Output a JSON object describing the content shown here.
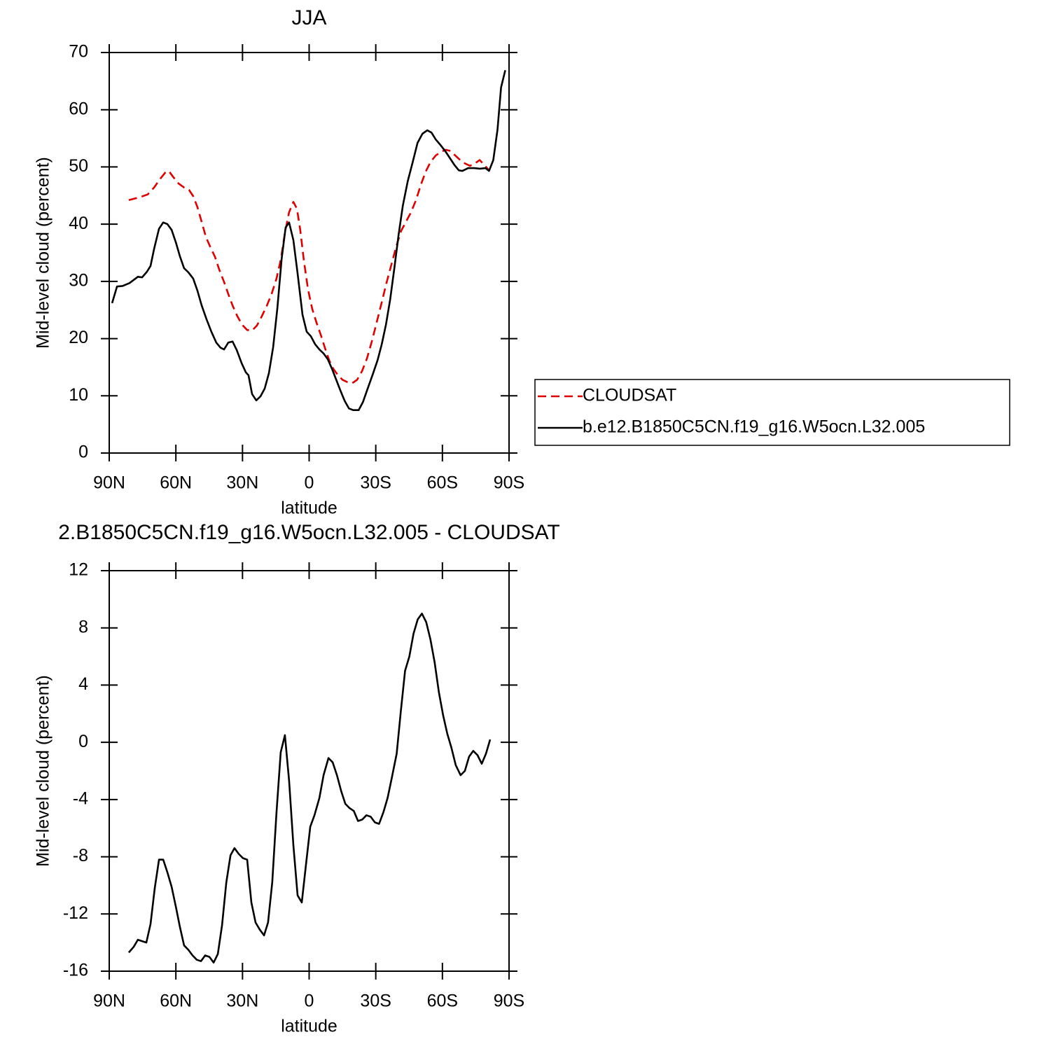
{
  "chart_data": [
    {
      "type": "line",
      "title": "JJA",
      "xlabel": "latitude",
      "ylabel": "Mid-level cloud (percent)",
      "xlim": [
        90,
        -90
      ],
      "xticks": [
        {
          "value": 90,
          "label": "90N"
        },
        {
          "value": 60,
          "label": "60N"
        },
        {
          "value": 30,
          "label": "30N"
        },
        0,
        {
          "value": -30,
          "label": "30S"
        },
        {
          "value": -60,
          "label": "60S"
        },
        {
          "value": -90,
          "label": "90S"
        }
      ],
      "ylim": [
        0,
        70
      ],
      "yticks": [
        0,
        10,
        20,
        30,
        40,
        50,
        60,
        70
      ],
      "legend": "right",
      "series": [
        {
          "name": "CLOUDSAT",
          "color": "#e00000",
          "dash": true,
          "x": [
            81.2,
            78.3,
            75.5,
            72.7,
            69.8,
            67.3,
            64.8,
            63.2,
            61.3,
            58.8,
            56.3,
            54.1,
            52.2,
            50.3,
            48.4,
            46.5,
            44.6,
            42.4,
            40.5,
            38.3,
            36.4,
            34.5,
            32.3,
            30.1,
            27.9,
            25.7,
            23.5,
            21.3,
            19.1,
            16.9,
            14.7,
            12.7,
            10.9,
            9,
            7.1,
            5.5,
            4,
            2.4,
            0.5,
            -1.4,
            -3.3,
            -5.2,
            -7.1,
            -9,
            -10.9,
            -12.8,
            -15,
            -17.2,
            -19.4,
            -21.6,
            -23.8,
            -26,
            -28.2,
            -30.4,
            -32.6,
            -34.8,
            -37,
            -39.2,
            -41.4,
            -43.7,
            -45.9,
            -48.1,
            -50.3,
            -52.5,
            -54.7,
            -57,
            -59.2,
            -61.4,
            -63.6,
            -65.8,
            -68,
            -70.2,
            -72.4,
            -74.6,
            -76.8,
            -79,
            -81.2
          ],
          "values": [
            44.2,
            44.5,
            44.8,
            45.2,
            46.4,
            47.8,
            49.0,
            49.3,
            48.3,
            47.1,
            46.4,
            46.0,
            44.9,
            43.0,
            40.4,
            37.8,
            36.1,
            34.3,
            32.1,
            29.9,
            27.8,
            25.8,
            23.9,
            22.4,
            21.5,
            21.4,
            22.3,
            23.9,
            25.7,
            27.8,
            30.5,
            33.9,
            38.5,
            42.1,
            43.9,
            42.7,
            39.0,
            33.7,
            28.6,
            25.2,
            22.8,
            20.7,
            18.4,
            16.2,
            14.7,
            13.7,
            12.8,
            12.4,
            12.2,
            12.8,
            14.3,
            16.5,
            19.5,
            22.8,
            26.2,
            29.7,
            32.9,
            36.1,
            38.8,
            40.5,
            42.1,
            44.2,
            46.9,
            49.2,
            50.9,
            52.0,
            52.6,
            53.0,
            52.8,
            52.0,
            51.2,
            50.6,
            50.2,
            50.6,
            51.2,
            50.3,
            49.3
          ]
        },
        {
          "name": "b.e12.B1850C5CN.f19_g16.W5ocn.L32.005",
          "color": "#000000",
          "dash": false,
          "x": [
            88.7,
            86.5,
            84,
            80.9,
            77.1,
            75.2,
            73,
            71.4,
            69.8,
            67.6,
            65.7,
            63.8,
            61.9,
            60,
            58.2,
            56.3,
            54.4,
            52.2,
            50.3,
            48.4,
            46.2,
            44,
            41.8,
            39.9,
            38.3,
            36.4,
            34.5,
            32.6,
            30.4,
            28.5,
            27.3,
            25.7,
            23.8,
            21.9,
            20,
            18.1,
            16.2,
            14.3,
            12.4,
            10.6,
            9,
            7.1,
            5.2,
            3,
            1.1,
            -0.8,
            -2.7,
            -4.6,
            -6.5,
            -8.4,
            -10.3,
            -12.2,
            -14.1,
            -16,
            -17.9,
            -19.8,
            -22.3,
            -24.2,
            -26.4,
            -28.6,
            -30.8,
            -32.7,
            -34.6,
            -36.5,
            -38.4,
            -40.3,
            -42.2,
            -44.4,
            -46.6,
            -48.8,
            -51,
            -53.2,
            -55.1,
            -57,
            -59.2,
            -61.4,
            -63.6,
            -65.5,
            -67.4,
            -69,
            -71.6,
            -74.3,
            -76.9,
            -79.4,
            -81,
            -82.9,
            -84.8,
            -86.4,
            -88.3
          ],
          "values": [
            26.2,
            29.1,
            29.2,
            29.7,
            30.8,
            30.7,
            31.7,
            32.7,
            35.7,
            39.2,
            40.3,
            40.0,
            39.0,
            36.8,
            34.4,
            32.3,
            31.6,
            30.5,
            28.4,
            25.8,
            23.4,
            21.2,
            19.3,
            18.4,
            18.1,
            19.3,
            19.5,
            18.0,
            15.7,
            14.1,
            13.6,
            10.3,
            9.2,
            9.9,
            11.3,
            14.0,
            18.5,
            25.3,
            33.9,
            39.4,
            40.3,
            37.2,
            31.4,
            24.2,
            21.2,
            20.4,
            19.0,
            18.1,
            17.4,
            16.4,
            14.7,
            12.8,
            10.9,
            9.1,
            7.8,
            7.5,
            7.5,
            8.9,
            11.3,
            13.7,
            16.2,
            19.0,
            22.5,
            26.9,
            32.4,
            38.2,
            43.3,
            47.5,
            50.8,
            54.2,
            55.8,
            56.4,
            56.0,
            54.8,
            53.8,
            52.7,
            51.4,
            50.3,
            49.4,
            49.3,
            49.8,
            49.8,
            49.7,
            49.8,
            49.3,
            51.2,
            56.5,
            63.9,
            66.9
          ]
        }
      ]
    },
    {
      "type": "line",
      "title": "2.B1850C5CN.f19_g16.W5ocn.L32.005 - CLOUDSAT",
      "xlabel": "latitude",
      "ylabel": "Mid-level cloud (percent)",
      "xlim": [
        90,
        -90
      ],
      "xticks": [
        {
          "value": 90,
          "label": "90N"
        },
        {
          "value": 60,
          "label": "60N"
        },
        {
          "value": 30,
          "label": "30N"
        },
        0,
        {
          "value": -30,
          "label": "30S"
        },
        {
          "value": -60,
          "label": "60S"
        },
        {
          "value": -90,
          "label": "90S"
        }
      ],
      "ylim": [
        -16,
        12
      ],
      "yticks": [
        -16,
        -12,
        -8,
        -4,
        0,
        4,
        8,
        12
      ],
      "series": [
        {
          "color": "#000000",
          "dash": false,
          "x": [
            81.2,
            79,
            77.1,
            75.2,
            73.3,
            71.4,
            69.5,
            67.6,
            65.7,
            63.8,
            61.9,
            60,
            58.2,
            56.3,
            54.4,
            52.5,
            50.6,
            48.7,
            46.8,
            44.9,
            43,
            41.1,
            39.2,
            37.3,
            35.4,
            33.6,
            31.7,
            29.8,
            27.9,
            26,
            24.1,
            22.2,
            20.3,
            18.5,
            16.6,
            14.7,
            12.8,
            10.9,
            9,
            7.1,
            5.2,
            3.3,
            1.4,
            -0.5,
            -2.4,
            -4.6,
            -6.5,
            -8.7,
            -10.6,
            -12.5,
            -14.4,
            -16.3,
            -18.2,
            -20.1,
            -22,
            -23.9,
            -25.8,
            -27.7,
            -29.6,
            -31.5,
            -33.4,
            -35.3,
            -37.2,
            -39.4,
            -41.3,
            -43.2,
            -45.1,
            -47,
            -48.9,
            -50.8,
            -52.7,
            -54.6,
            -56.5,
            -58.4,
            -60.3,
            -62.2,
            -64.1,
            -66,
            -68.2,
            -70.1,
            -72,
            -73.9,
            -75.8,
            -77.7,
            -79.6,
            -81.5
          ],
          "values": [
            -14.7,
            -14.3,
            -13.8,
            -13.9,
            -14.0,
            -12.7,
            -10.2,
            -8.2,
            -8.2,
            -9.1,
            -10.1,
            -11.5,
            -12.9,
            -14.2,
            -14.5,
            -14.9,
            -15.2,
            -15.3,
            -14.9,
            -15.0,
            -15.4,
            -14.8,
            -12.8,
            -9.8,
            -7.9,
            -7.4,
            -7.8,
            -8.1,
            -8.2,
            -11.2,
            -12.6,
            -13.1,
            -13.5,
            -12.6,
            -9.8,
            -4.9,
            -0.7,
            0.5,
            -2.7,
            -7.2,
            -10.7,
            -11.2,
            -8.5,
            -5.9,
            -5.1,
            -3.9,
            -2.3,
            -1.1,
            -1.4,
            -2.3,
            -3.4,
            -4.3,
            -4.6,
            -4.8,
            -5.5,
            -5.4,
            -5.1,
            -5.2,
            -5.6,
            -5.7,
            -4.9,
            -3.9,
            -2.5,
            -0.8,
            2.2,
            5.0,
            6.0,
            7.6,
            8.6,
            9.0,
            8.4,
            7.2,
            5.6,
            3.5,
            1.9,
            0.6,
            -0.4,
            -1.6,
            -2.3,
            -2.0,
            -1.0,
            -0.6,
            -0.9,
            -1.5,
            -0.8,
            0.2
          ]
        }
      ]
    }
  ]
}
